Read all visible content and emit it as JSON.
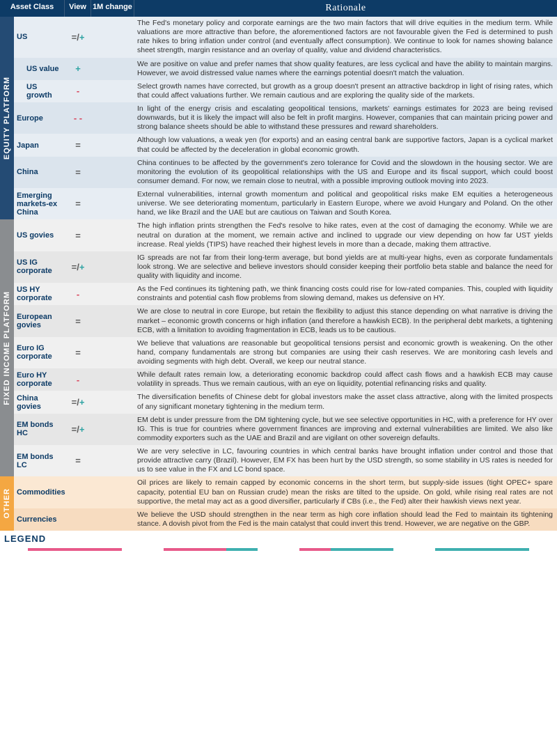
{
  "colors": {
    "header_bg": "#0d3b66",
    "equity_tab": "#244b74",
    "fixed_tab": "#8a8d90",
    "other_tab": "#f4a742",
    "row_alt1_equity": "#e7edf3",
    "row_alt2_equity": "#dbe4ed",
    "row_alt1_fixed": "#f0f0f0",
    "row_alt2_fixed": "#e6e6e6",
    "row_alt1_other": "#fbe8d3",
    "row_alt2_other": "#f7dcc0",
    "neutral": "#5a5a5a",
    "positive": "#2ea3a3",
    "negative": "#d9435a",
    "asset_text": "#0d3b66",
    "bar_pink": "#e85a8a",
    "bar_teal": "#3fb0b0"
  },
  "headers": {
    "asset": "Asset Class",
    "view": "View",
    "change": "1M change",
    "rationale": "Rationale"
  },
  "legend_label": "LEGEND",
  "platforms": [
    {
      "key": "equity",
      "label": "EQUITY PLATFORM",
      "tab_color": "#244b74",
      "alt1": "#e7edf3",
      "alt2": "#dbe4ed",
      "rows": [
        {
          "asset": "US",
          "indent": false,
          "view_parts": [
            [
              "=",
              "neutral"
            ],
            [
              "/",
              "neutral"
            ],
            [
              "+",
              "positive"
            ]
          ],
          "change_parts": [],
          "rationale": "The Fed's monetary policy and corporate earnings are the two main factors that will drive equities in the medium term. While valuations are more attractive than before, the aforementioned factors are not favourable given the Fed is determined to push rate hikes to bring inflation under control (and eventually affect consumption). We continue to look for names showing balance sheet strength, margin resistance and an overlay of quality, value and dividend characteristics."
        },
        {
          "asset": "US value",
          "indent": true,
          "view_parts": [
            [
              "+",
              "positive"
            ]
          ],
          "change_parts": [],
          "rationale": "We are positive on value and prefer names that show quality features, are less cyclical and have the ability to maintain margins. However, we avoid distressed value names where the earnings potential doesn't match the valuation."
        },
        {
          "asset": "US growth",
          "indent": true,
          "view_parts": [
            [
              "-",
              "negative"
            ]
          ],
          "change_parts": [],
          "rationale": "Select growth names have corrected, but growth as a group doesn't present an attractive backdrop in light of rising rates, which that could affect valuations further. We remain cautious and are exploring the quality side of the markets."
        },
        {
          "asset": "Europe",
          "indent": false,
          "view_parts": [
            [
              "- -",
              "negative"
            ]
          ],
          "change_parts": [],
          "rationale": "In light of the energy crisis and escalating geopolitical tensions, markets' earnings estimates for 2023 are being revised downwards, but it is likely the impact will also be felt in profit margins. However, companies that can maintain pricing power and strong balance sheets should be able to withstand these pressures and reward shareholders."
        },
        {
          "asset": "Japan",
          "indent": false,
          "view_parts": [
            [
              "=",
              "neutral"
            ]
          ],
          "change_parts": [],
          "rationale": "Although low valuations, a weak yen (for exports) and an easing central bank are supportive factors, Japan is a cyclical market that could be affected by the deceleration in global economic growth."
        },
        {
          "asset": "China",
          "indent": false,
          "view_parts": [
            [
              "=",
              "neutral"
            ]
          ],
          "change_parts": [],
          "rationale": "China continues to be affected by the government's zero tolerance for Covid and the slowdown in the housing sector. We are monitoring the evolution of its geopolitical relationships with the US and Europe and its fiscal support, which could boost consumer demand. For now, we remain close to neutral, with a possible improving outlook moving into 2023."
        },
        {
          "asset": "Emerging markets-ex China",
          "indent": false,
          "view_parts": [
            [
              "=",
              "neutral"
            ]
          ],
          "change_parts": [],
          "rationale": "External vulnerabilities, internal growth momentum and political and geopolitical risks make EM equities a heterogeneous universe. We see deteriorating momentum, particularly in Eastern Europe, where we avoid Hungary and Poland. On the other hand, we like Brazil and the UAE but are cautious on Taiwan and South Korea."
        }
      ]
    },
    {
      "key": "fixed",
      "label": "FIXED INCOME PLATFORM",
      "tab_color": "#8a8d90",
      "alt1": "#f0f0f0",
      "alt2": "#e6e6e6",
      "rows": [
        {
          "asset": "US govies",
          "indent": false,
          "view_parts": [
            [
              "=",
              "neutral"
            ]
          ],
          "change_parts": [],
          "rationale": "The high inflation prints strengthen the Fed's resolve to hike rates, even at the cost of damaging the economy. While we are neutral on duration at the moment, we remain active and inclined to upgrade our view depending on how far UST yields increase. Real yields (TIPS) have reached their highest levels in more than a decade, making them attractive."
        },
        {
          "asset": "US IG corporate",
          "indent": false,
          "view_parts": [
            [
              "=",
              "neutral"
            ],
            [
              "/",
              "neutral"
            ],
            [
              "+",
              "positive"
            ]
          ],
          "change_parts": [],
          "rationale": "IG spreads are not far from their long-term average, but bond yields are at multi-year highs, even as corporate fundamentals look strong. We are selective and believe investors should consider keeping their portfolio beta stable and balance the need for quality with liquidity and income."
        },
        {
          "asset": "US HY corporate",
          "indent": false,
          "view_parts": [
            [
              "-",
              "negative"
            ]
          ],
          "change_parts": [],
          "rationale": "As the Fed continues its tightening path, we think financing costs could rise for low-rated companies. This, coupled with liquidity constraints and potential cash flow problems from slowing demand, makes us defensive on HY."
        },
        {
          "asset": "European govies",
          "indent": false,
          "view_parts": [
            [
              "=",
              "neutral"
            ]
          ],
          "change_parts": [],
          "rationale": "We are close to neutral in core Europe, but retain the flexibility to adjust this stance depending on what narrative is driving the market – economic growth concerns or high inflation (and therefore a hawkish ECB). In the peripheral debt markets, a tightening ECB, with a limitation to avoiding fragmentation in ECB, leads us to be cautious."
        },
        {
          "asset": "Euro IG corporate",
          "indent": false,
          "view_parts": [
            [
              "=",
              "neutral"
            ]
          ],
          "change_parts": [],
          "rationale": "We believe that valuations are reasonable but geopolitical tensions persist and economic growth is weakening. On the other hand, company fundamentals are strong but companies are using their cash reserves. We are monitoring cash levels and avoiding segments with high debt. Overall, we keep our neutral stance."
        },
        {
          "asset": "Euro HY corporate",
          "indent": false,
          "view_parts": [
            [
              "-",
              "negative"
            ]
          ],
          "change_parts": [],
          "rationale": "While default rates remain low, a deteriorating economic backdrop could affect cash flows and a hawkish ECB may cause volatility in spreads. Thus we remain cautious, with an eye on liquidity, potential refinancing risks and quality."
        },
        {
          "asset": "China govies",
          "indent": false,
          "view_parts": [
            [
              "=",
              "neutral"
            ],
            [
              "/",
              "neutral"
            ],
            [
              "+",
              "positive"
            ]
          ],
          "change_parts": [],
          "rationale": "The diversification benefits of Chinese debt for global investors make the asset class attractive, along with the limited prospects of any significant monetary tightening in the medium term."
        },
        {
          "asset": "EM bonds HC",
          "indent": false,
          "view_parts": [
            [
              "=",
              "neutral"
            ],
            [
              "/",
              "neutral"
            ],
            [
              "+",
              "positive"
            ]
          ],
          "change_parts": [],
          "rationale": "EM debt is under pressure from the DM tightening cycle, but we see selective opportunities in HC, with a preference for HY over IG. This is true for countries where government finances are improving and external vulnerabilities are limited. We also like commodity exporters such as the UAE and Brazil and are vigilant on other sovereign defaults."
        },
        {
          "asset": "EM bonds LC",
          "indent": false,
          "view_parts": [
            [
              "=",
              "neutral"
            ]
          ],
          "change_parts": [],
          "rationale": "We are very selective in LC, favouring countries in which central banks have brought inflation under control and those that provide attractive carry (Brazil). However, EM FX has been hurt by the USD strength, so some stability in US rates is needed for us to see value in the FX and LC bond space."
        }
      ]
    },
    {
      "key": "other",
      "label": "OTHER",
      "tab_color": "#f4a742",
      "alt1": "#fbe8d3",
      "alt2": "#f7dcc0",
      "rows": [
        {
          "asset": "Commodities",
          "indent": false,
          "view_parts": [],
          "change_parts": [],
          "rationale": "Oil prices are likely to remain capped by economic concerns in the short term, but supply-side issues (tight OPEC+ spare capacity, potential EU ban on Russian crude) mean the risks are tilted to the upside. On gold, while rising real rates are not supportive, the metal may act as a good diversifier, particularly if CBs (i.e., the Fed) alter their hawkish views next year."
        },
        {
          "asset": "Currencies",
          "indent": false,
          "view_parts": [],
          "change_parts": [],
          "rationale": "We believe the USD should strengthen in the near term as high core inflation should lead the Fed to maintain its tightening stance. A dovish pivot from the Fed is the main catalyst that could invert this trend. However, we are negative on the GBP."
        }
      ]
    }
  ],
  "footer_bars": [
    [
      "bar_pink",
      "bar_pink",
      "bar_pink"
    ],
    [
      "bar_pink",
      "bar_pink",
      "bar_teal"
    ],
    [
      "bar_pink",
      "bar_teal",
      "bar_teal"
    ],
    [
      "bar_teal",
      "bar_teal",
      "bar_teal"
    ]
  ]
}
